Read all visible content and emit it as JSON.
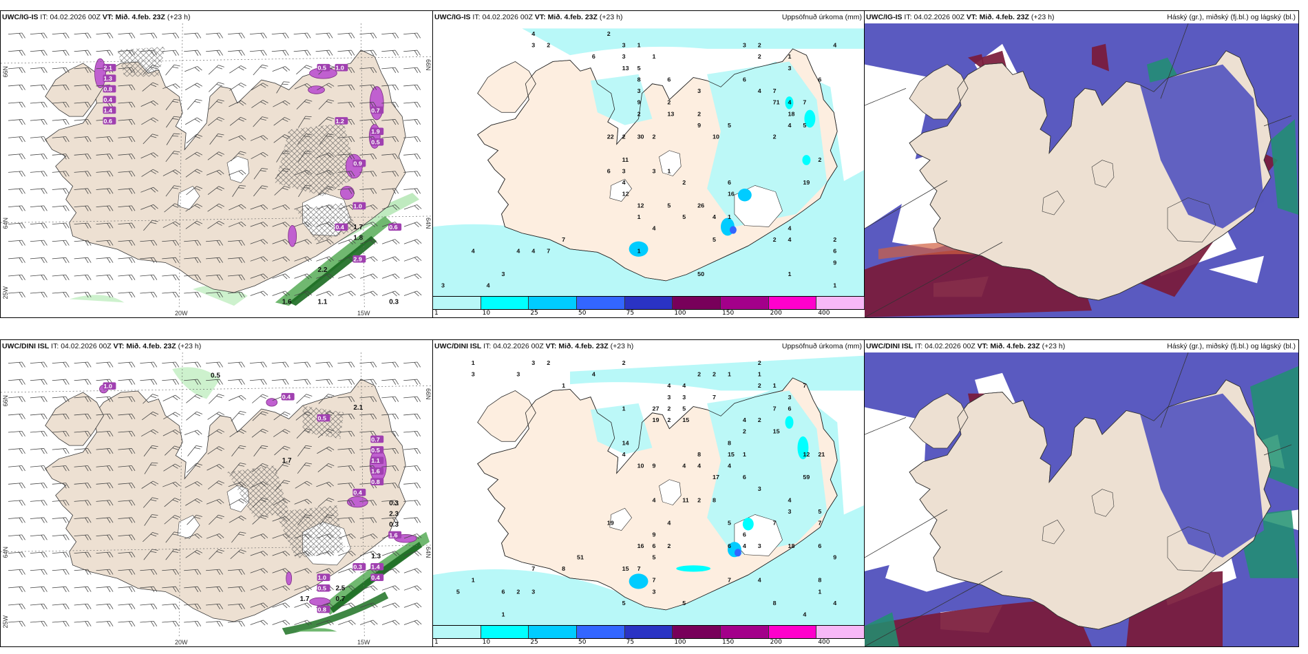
{
  "panels": [
    {
      "model": "UWC/IG-IS",
      "it_label": "IT:",
      "it_value": "04.02.2026 00Z",
      "vt_label": "VT:",
      "vt_value": "Mið. 4.feb. 23Z",
      "lead": "(+23 h)",
      "right_title": "",
      "type": "wind-precip",
      "lat_labels": [
        "66N",
        "64N",
        "25W"
      ],
      "lat_labels_right": [
        "66N",
        "64N"
      ],
      "lon_labels": [
        "20W",
        "15W"
      ],
      "values": [
        "2.1",
        "1.3",
        "0.8",
        "0.4",
        "1.4",
        "0.6",
        "0.5",
        "1.0",
        "1.2",
        "0.7",
        "1.9",
        "0.5",
        "0.9",
        "1.0",
        "0.4",
        "1.8",
        "1.7",
        "2.9",
        "2.2",
        "1.1",
        "1.6",
        "0.3",
        "0.6"
      ]
    },
    {
      "model": "UWC/IG-IS",
      "it_label": "IT:",
      "it_value": "04.02.2026 00Z",
      "vt_label": "VT:",
      "vt_value": "Mið. 4.feb. 23Z",
      "lead": "(+23 h)",
      "right_title": "Uppsöfnuð úrkoma (mm)",
      "type": "accum-precip",
      "values": [
        "3",
        "2",
        "2",
        "1",
        "1",
        "2",
        "3",
        "3",
        "3",
        "4",
        "2",
        "4",
        "6",
        "7",
        "12",
        "6",
        "6",
        "2",
        "2",
        "5",
        "16",
        "3",
        "3",
        "2",
        "2",
        "19",
        "26",
        "2",
        "3",
        "4",
        "4",
        "4",
        "5",
        "4",
        "3",
        "13",
        "8",
        "11",
        "6",
        "10",
        "6",
        "18",
        "2",
        "2",
        "4",
        "12",
        "5",
        "13",
        "22",
        "7",
        "1",
        "1",
        "2",
        "1",
        "5",
        "30",
        "9",
        "9",
        "71",
        "1",
        "6",
        "5",
        "3",
        "50",
        "3",
        "4",
        "4",
        "5",
        "4",
        "7",
        "4",
        "6",
        "7",
        "3",
        "9",
        "4",
        "4",
        "2",
        "4",
        "1",
        "1",
        "1",
        "2"
      ]
    },
    {
      "model": "UWC/IG-IS",
      "it_label": "IT:",
      "it_value": "04.02.2026 00Z",
      "vt_label": "VT:",
      "vt_value": "Mið. 4.feb. 23Z",
      "lead": "(+23 h)",
      "right_title": "Háský (gr.), miðský (fj.bl.) og lágský (bl.)",
      "type": "clouds"
    },
    {
      "model": "UWC/DINI ISL",
      "it_label": "IT:",
      "it_value": "04.02.2026 00Z",
      "vt_label": "VT:",
      "vt_value": "Mið. 4.feb. 23Z",
      "lead": "(+23 h)",
      "right_title": "",
      "type": "wind-precip",
      "lat_labels": [
        "66N",
        "64N",
        "25W"
      ],
      "lat_labels_right": [
        "66N",
        "64N"
      ],
      "lon_labels": [
        "20W",
        "15W"
      ],
      "values": [
        "1.0",
        "0.5",
        "0.4",
        "2.1",
        "0.5",
        "0.7",
        "0.5",
        "1.1",
        "1.6",
        "0.8",
        "0.4",
        "1.7",
        "0.3",
        "2.3",
        "0.3",
        "1.6",
        "1.3",
        "1.4",
        "0.3",
        "0.4",
        "1.0",
        "0.5",
        "1.7",
        "2.5",
        "0.7",
        "0.8"
      ]
    },
    {
      "model": "UWC/DINI ISL",
      "it_label": "IT:",
      "it_value": "04.02.2026 00Z",
      "vt_label": "VT:",
      "vt_value": "Mið. 4.feb. 23Z",
      "lead": "(+23 h)",
      "right_title": "Uppsöfnuð úrkoma (mm)",
      "type": "accum-precip",
      "values": [
        "2",
        "2",
        "1",
        "1",
        "3",
        "2",
        "1",
        "1",
        "2",
        "3",
        "4",
        "3",
        "1",
        "2",
        "2",
        "3",
        "3",
        "8",
        "7",
        "12",
        "6",
        "3",
        "2",
        "2",
        "3",
        "4",
        "4",
        "3",
        "4",
        "2",
        "17",
        "4",
        "4",
        "15",
        "4",
        "6",
        "6",
        "6",
        "2",
        "6",
        "21",
        "8",
        "5",
        "5",
        "6",
        "27",
        "7",
        "19",
        "2",
        "9",
        "1",
        "7",
        "10",
        "16",
        "7",
        "14",
        "1",
        "4",
        "4",
        "15",
        "8",
        "15",
        "5",
        "3",
        "4",
        "18",
        "2",
        "4",
        "7",
        "19",
        "11",
        "59",
        "4",
        "9",
        "3",
        "3",
        "15",
        "8",
        "7",
        "8",
        "7",
        "8",
        "1",
        "1",
        "1",
        "51",
        "7",
        "4",
        "2",
        "5",
        "4",
        "9",
        "5",
        "7",
        "6",
        "5",
        "5",
        "4"
      ]
    },
    {
      "model": "UWC/DINI ISL",
      "it_label": "IT:",
      "it_value": "04.02.2026 00Z",
      "vt_label": "VT:",
      "vt_value": "Mið. 4.feb. 23Z",
      "lead": "(+23 h)",
      "right_title": "Háský (gr.), miðský (fj.bl.) og lágský (bl.)",
      "type": "clouds"
    }
  ],
  "colorbar": {
    "ticks": [
      "1",
      "10",
      "25",
      "50",
      "75",
      "100",
      "150",
      "200",
      "400"
    ],
    "colors": [
      "#b8f8f8",
      "#00ffff",
      "#00ccff",
      "#3366ff",
      "#2a33c4",
      "#78005a",
      "#a3008a",
      "#ff00cc",
      "#f7b8f7"
    ]
  },
  "colors": {
    "land": "#ede0d2",
    "land_precip": "#fdeee0",
    "precip_light": "#b8f8f8",
    "cloud_low": "#5a5ac0",
    "cloud_mid": "#7a1a3a",
    "cloud_high": "#209070",
    "green_precip": "#1a6a20",
    "purple_snow": "#b050c0"
  }
}
